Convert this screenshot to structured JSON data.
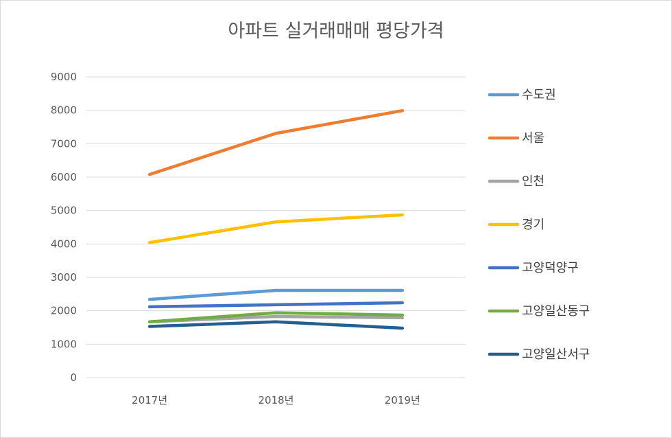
{
  "chart_data": {
    "type": "line",
    "title": "아파트 실거래매매 평당가격",
    "xlabel": "",
    "ylabel": "",
    "categories": [
      "2017년",
      "2018년",
      "2019년"
    ],
    "ylim": [
      0,
      9000
    ],
    "yticks": [
      0,
      1000,
      2000,
      3000,
      4000,
      5000,
      6000,
      7000,
      8000,
      9000
    ],
    "grid": true,
    "legend": "right",
    "series": [
      {
        "name": "수도권",
        "color": "#5b9bd5",
        "values": [
          2340,
          2610,
          2610
        ]
      },
      {
        "name": "서울",
        "color": "#ed7d31",
        "values": [
          6080,
          7310,
          7990
        ]
      },
      {
        "name": "인천",
        "color": "#a5a5a5",
        "values": [
          1670,
          1830,
          1790
        ]
      },
      {
        "name": "경기",
        "color": "#ffc000",
        "values": [
          4040,
          4660,
          4870
        ]
      },
      {
        "name": "고양덕양구",
        "color": "#4472c4",
        "values": [
          2120,
          2180,
          2240
        ]
      },
      {
        "name": "고양일산동구",
        "color": "#70ad47",
        "values": [
          1670,
          1940,
          1870
        ]
      },
      {
        "name": "고양일산서구",
        "color": "#255e91",
        "values": [
          1530,
          1670,
          1480
        ]
      }
    ]
  }
}
